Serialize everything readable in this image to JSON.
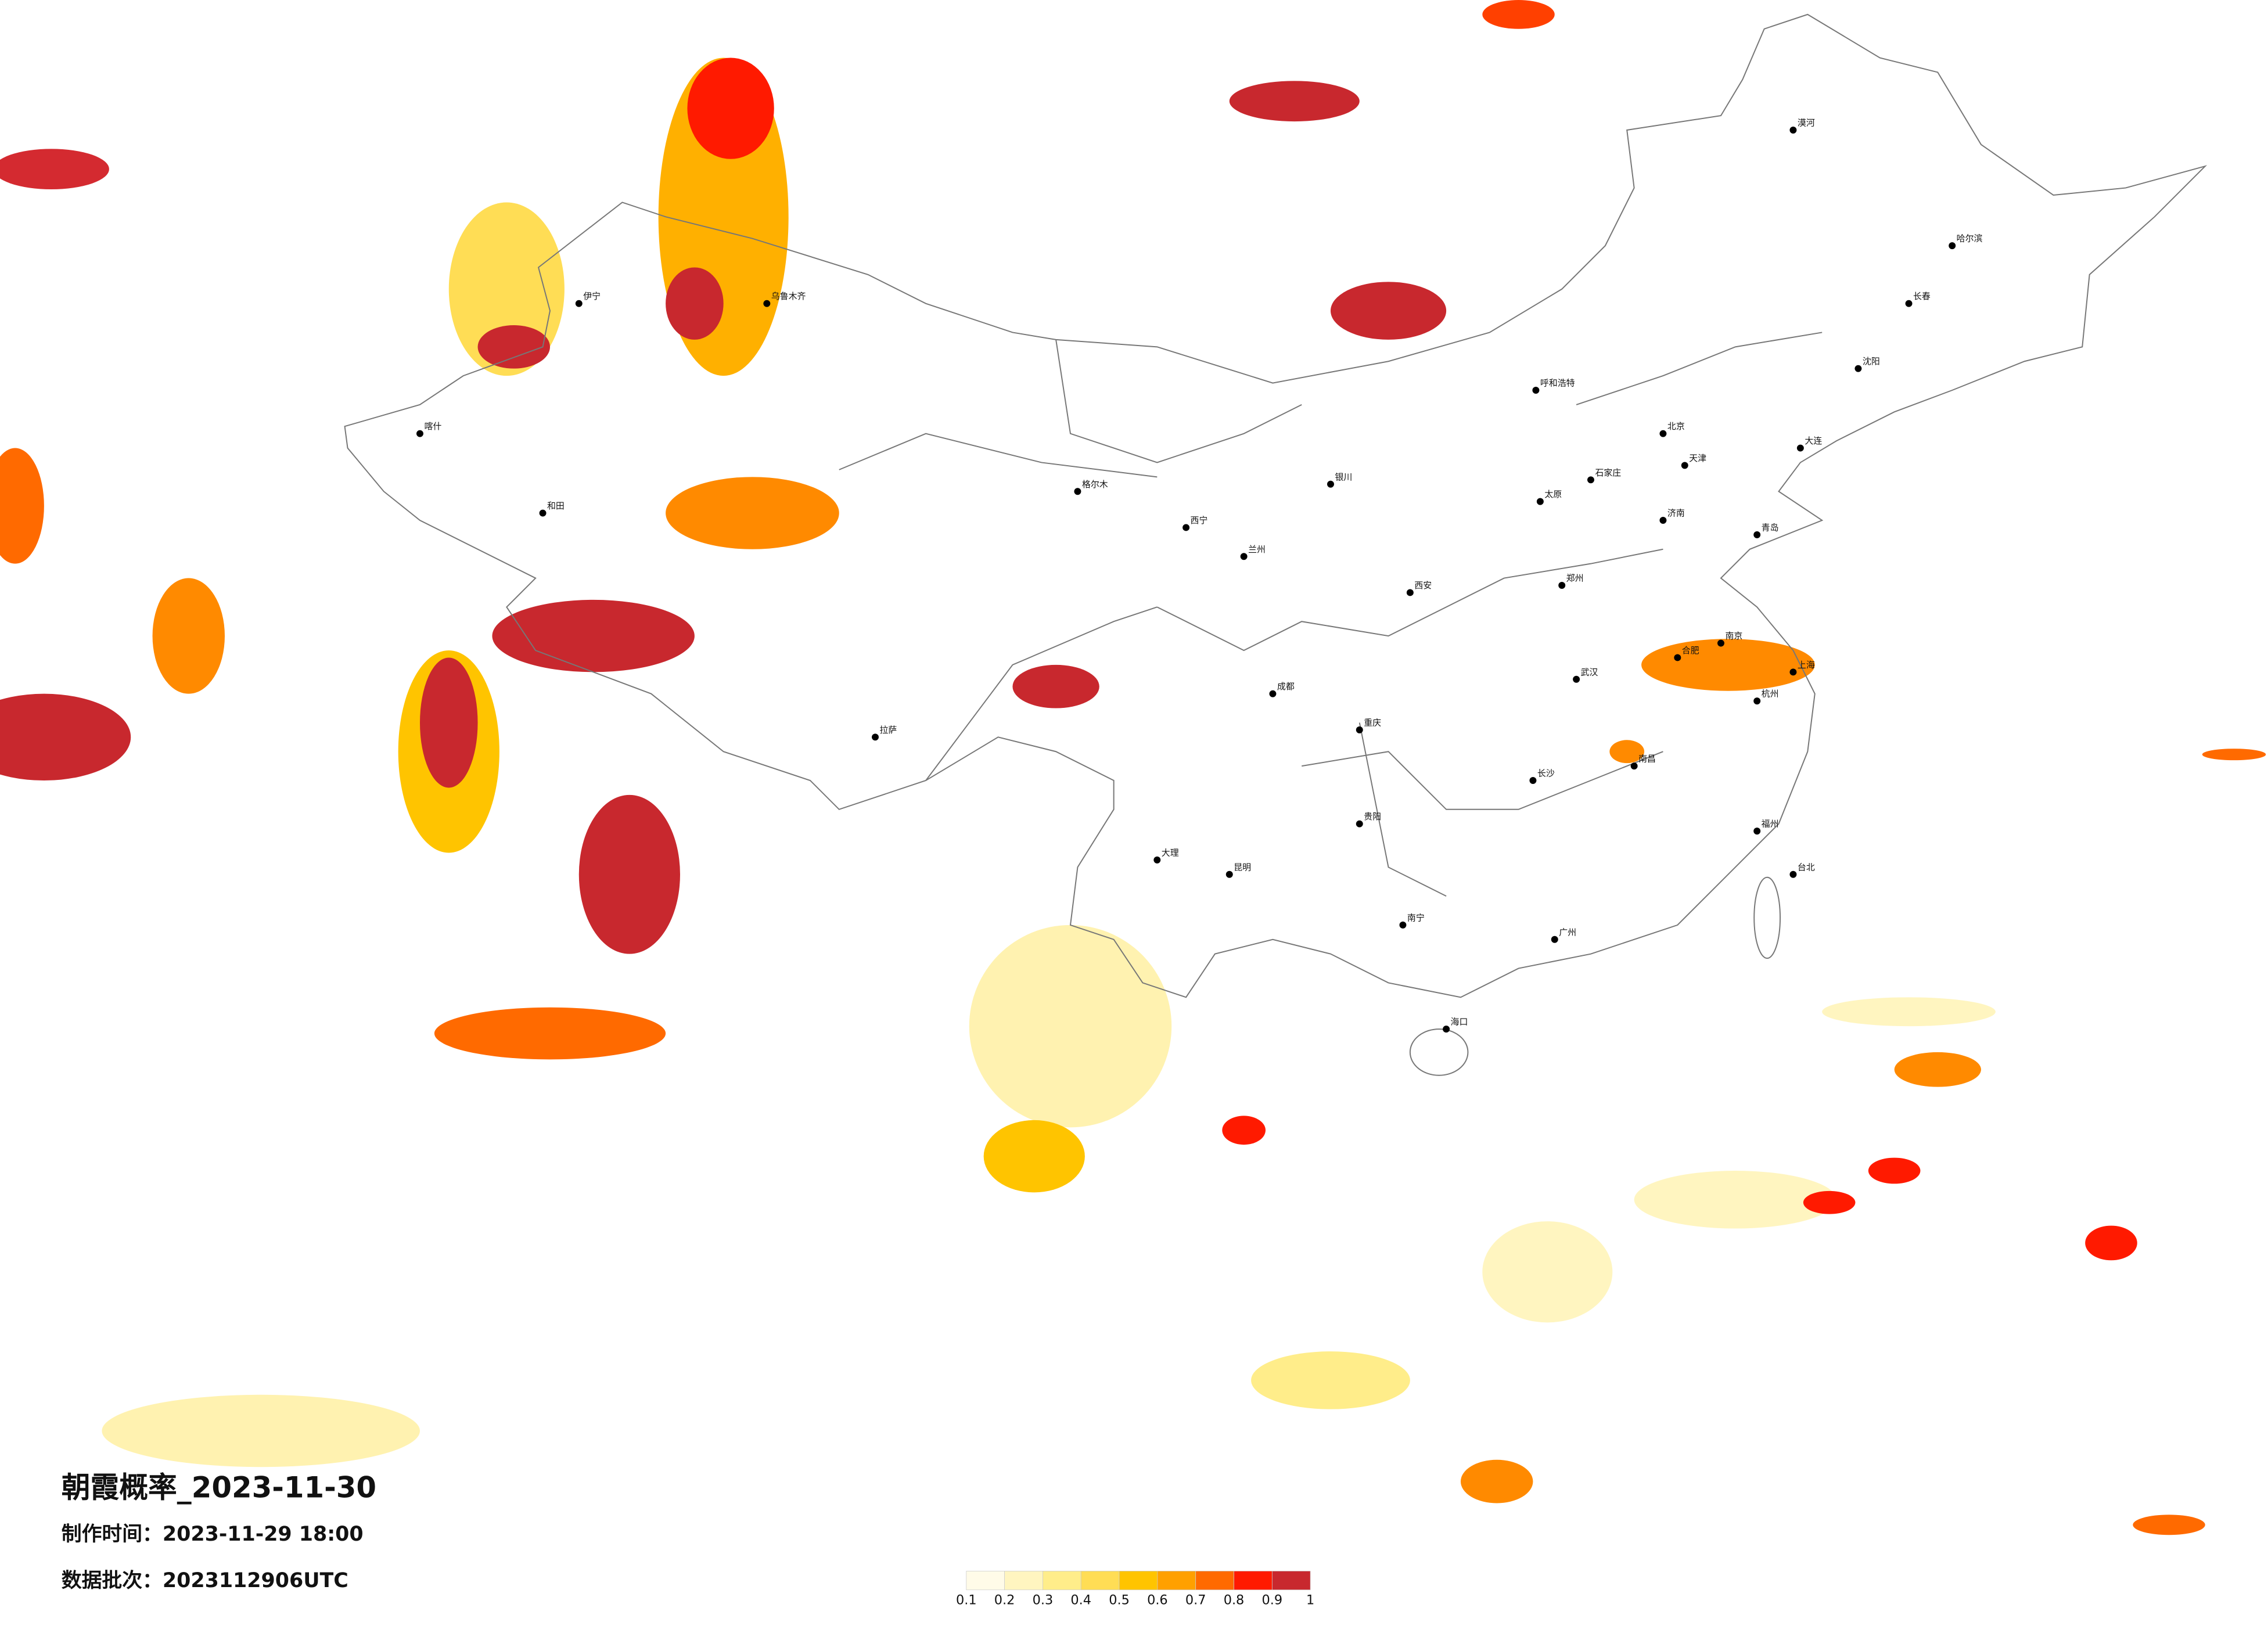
{
  "title": "朝霞概率_2023-11-30",
  "production_time": "制作时间：2023-11-29 18:00",
  "data_batch": "数据批次：2023112906UTC",
  "legend": {
    "ticks": [
      0.1,
      0.2,
      0.3,
      0.4,
      0.5,
      0.6,
      0.7,
      0.8,
      0.9,
      1
    ],
    "colors": [
      "#fffbe8",
      "#fff5c0",
      "#ffed8a",
      "#ffdd55",
      "#ffc400",
      "#ffa000",
      "#ff6a00",
      "#ff1a00",
      "#c8282e"
    ]
  },
  "cities": [
    "北京",
    "天津",
    "石家庄",
    "太原",
    "呼和浩特",
    "沈阳",
    "长春",
    "哈尔滨",
    "济南",
    "郑州",
    "西安",
    "兰州",
    "西宁",
    "银川",
    "乌鲁木齐",
    "拉萨",
    "成都",
    "重庆",
    "贵阳",
    "昆明",
    "南宁",
    "广州",
    "长沙",
    "武汉",
    "南昌",
    "合肥",
    "南京",
    "上海",
    "杭州",
    "福州",
    "台北",
    "海口",
    "喀什",
    "和田",
    "伊宁",
    "格尔木",
    "大理",
    "大连",
    "青岛",
    "漠河"
  ]
}
